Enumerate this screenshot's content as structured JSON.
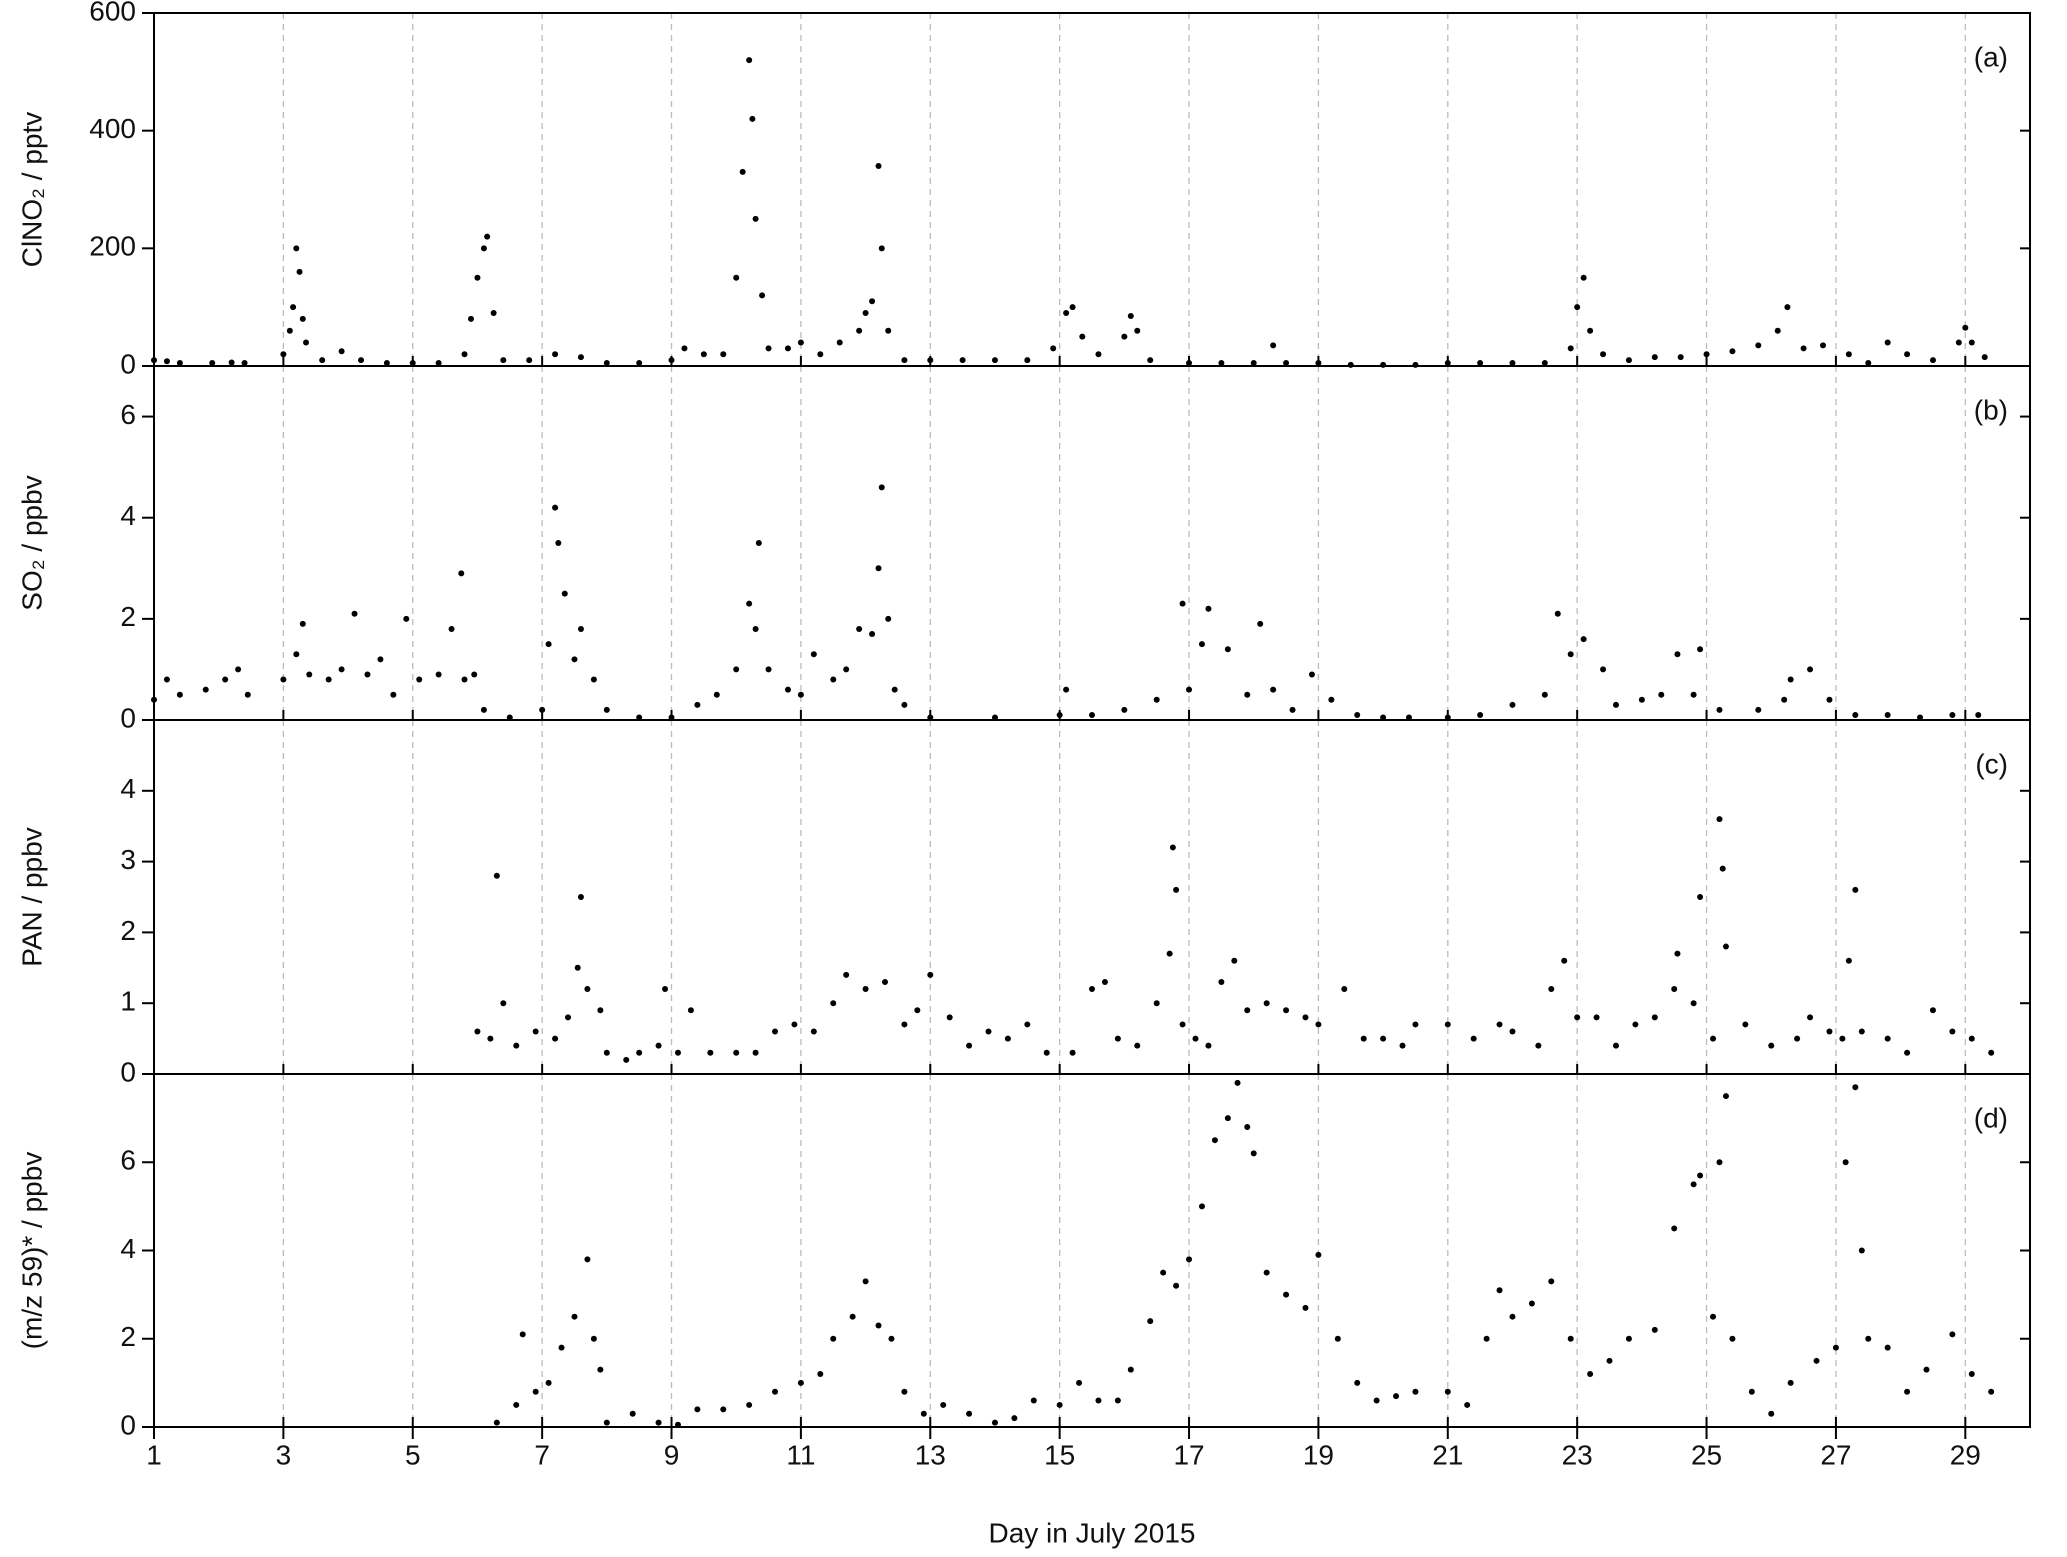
{
  "chart_data": [
    {
      "type": "scatter",
      "ylabel": "ClNO₂ / pptv",
      "annotation": "(a)",
      "color": "#000000",
      "grid": true,
      "xlim": [
        1,
        30
      ],
      "xticks": [
        1,
        3,
        5,
        7,
        9,
        11,
        13,
        15,
        17,
        19,
        21,
        23,
        25,
        27,
        29
      ],
      "ylim": [
        0,
        600
      ],
      "yticks": [
        0,
        200,
        400,
        600
      ],
      "x": [
        1.0,
        1.2,
        1.4,
        1.9,
        2.2,
        2.4,
        3.0,
        3.1,
        3.15,
        3.2,
        3.25,
        3.3,
        3.35,
        3.6,
        3.9,
        4.2,
        4.6,
        5.0,
        5.4,
        5.8,
        5.9,
        6.0,
        6.1,
        6.15,
        6.25,
        6.4,
        6.8,
        7.2,
        7.6,
        8.0,
        8.5,
        9.0,
        9.2,
        9.5,
        9.8,
        10.0,
        10.1,
        10.2,
        10.25,
        10.3,
        10.4,
        10.5,
        10.8,
        11.0,
        11.3,
        11.6,
        11.9,
        12.0,
        12.1,
        12.2,
        12.25,
        12.35,
        12.6,
        13.0,
        13.5,
        14.0,
        14.5,
        14.9,
        15.1,
        15.2,
        15.35,
        15.6,
        16.0,
        16.1,
        16.2,
        16.4,
        17.0,
        17.5,
        18.0,
        18.3,
        18.5,
        19.0,
        19.5,
        20.0,
        20.5,
        21.0,
        21.5,
        22.0,
        22.5,
        22.9,
        23.0,
        23.1,
        23.2,
        23.4,
        23.8,
        24.2,
        24.6,
        25.0,
        25.4,
        25.8,
        26.1,
        26.25,
        26.5,
        26.8,
        27.2,
        27.5,
        27.8,
        28.1,
        28.5,
        28.9,
        29.0,
        29.1,
        29.3
      ],
      "values": [
        10,
        8,
        5,
        5,
        6,
        5,
        20,
        60,
        100,
        200,
        160,
        80,
        40,
        10,
        25,
        10,
        5,
        5,
        5,
        20,
        80,
        150,
        200,
        220,
        90,
        10,
        10,
        20,
        15,
        5,
        5,
        10,
        30,
        20,
        20,
        150,
        330,
        520,
        420,
        250,
        120,
        30,
        30,
        40,
        20,
        40,
        60,
        90,
        110,
        340,
        200,
        60,
        10,
        10,
        10,
        10,
        10,
        30,
        90,
        100,
        50,
        20,
        50,
        85,
        60,
        10,
        5,
        5,
        5,
        35,
        5,
        5,
        2,
        2,
        2,
        5,
        5,
        5,
        5,
        30,
        100,
        150,
        60,
        20,
        10,
        15,
        15,
        20,
        25,
        35,
        60,
        100,
        30,
        35,
        20,
        5,
        40,
        20,
        10,
        40,
        65,
        40,
        15
      ]
    },
    {
      "type": "scatter",
      "ylabel": "SO₂ / ppbv",
      "annotation": "(b)",
      "color": "#000000",
      "grid": true,
      "xlim": [
        1,
        30
      ],
      "xticks": [
        1,
        3,
        5,
        7,
        9,
        11,
        13,
        15,
        17,
        19,
        21,
        23,
        25,
        27,
        29
      ],
      "ylim": [
        0,
        7
      ],
      "yticks": [
        0,
        2,
        4,
        6
      ],
      "x": [
        1.0,
        1.2,
        1.4,
        1.8,
        2.1,
        2.3,
        2.45,
        3.0,
        3.2,
        3.3,
        3.4,
        3.7,
        3.9,
        4.1,
        4.3,
        4.5,
        4.7,
        4.9,
        5.1,
        5.4,
        5.6,
        5.8,
        5.75,
        5.95,
        6.1,
        6.5,
        7.0,
        7.1,
        7.2,
        7.25,
        7.35,
        7.5,
        7.6,
        7.8,
        8.0,
        8.5,
        9.0,
        9.4,
        9.7,
        10.0,
        10.2,
        10.3,
        10.35,
        10.5,
        10.8,
        11.0,
        11.2,
        11.5,
        11.7,
        11.9,
        12.1,
        12.2,
        12.25,
        12.35,
        12.45,
        12.6,
        13.0,
        14.0,
        15.0,
        15.1,
        15.5,
        16.0,
        16.5,
        16.9,
        17.0,
        17.2,
        17.3,
        17.6,
        17.9,
        18.1,
        18.3,
        18.6,
        18.9,
        19.2,
        19.6,
        20.0,
        20.4,
        21.0,
        21.5,
        22.0,
        22.5,
        22.7,
        22.9,
        23.1,
        23.4,
        23.6,
        24.0,
        24.3,
        24.55,
        24.8,
        24.9,
        25.2,
        25.8,
        26.2,
        26.3,
        26.6,
        26.9,
        27.3,
        27.8,
        28.3,
        28.8,
        29.2
      ],
      "values": [
        0.4,
        0.8,
        0.5,
        0.6,
        0.8,
        1.0,
        0.5,
        0.8,
        1.3,
        1.9,
        0.9,
        0.8,
        1.0,
        2.1,
        0.9,
        1.2,
        0.5,
        2.0,
        0.8,
        0.9,
        1.8,
        0.8,
        2.9,
        0.9,
        0.2,
        0.05,
        0.2,
        1.5,
        4.2,
        3.5,
        2.5,
        1.2,
        1.8,
        0.8,
        0.2,
        0.05,
        0.05,
        0.3,
        0.5,
        1.0,
        2.3,
        1.8,
        3.5,
        1.0,
        0.6,
        0.5,
        1.3,
        0.8,
        1.0,
        1.8,
        1.7,
        3.0,
        4.6,
        2.0,
        0.6,
        0.3,
        0.05,
        0.05,
        0.1,
        0.6,
        0.1,
        0.2,
        0.4,
        2.3,
        0.6,
        1.5,
        2.2,
        1.4,
        0.5,
        1.9,
        0.6,
        0.2,
        0.9,
        0.4,
        0.1,
        0.05,
        0.05,
        0.05,
        0.1,
        0.3,
        0.5,
        2.1,
        1.3,
        1.6,
        1.0,
        0.3,
        0.4,
        0.5,
        1.3,
        0.5,
        1.4,
        0.2,
        0.2,
        0.4,
        0.8,
        1.0,
        0.4,
        0.1,
        0.1,
        0.05,
        0.1,
        0.1
      ]
    },
    {
      "type": "scatter",
      "ylabel": "PAN / ppbv",
      "annotation": "(c)",
      "color": "#000000",
      "grid": true,
      "xlim": [
        1,
        30
      ],
      "xticks": [
        1,
        3,
        5,
        7,
        9,
        11,
        13,
        15,
        17,
        19,
        21,
        23,
        25,
        27,
        29
      ],
      "ylim": [
        0,
        5
      ],
      "yticks": [
        0,
        1,
        2,
        3,
        4
      ],
      "x": [
        6.0,
        6.2,
        6.3,
        6.4,
        6.6,
        6.9,
        7.2,
        7.4,
        7.55,
        7.6,
        7.7,
        7.9,
        8.0,
        8.3,
        8.5,
        8.8,
        8.9,
        9.1,
        9.3,
        9.6,
        10.0,
        10.3,
        10.6,
        10.9,
        11.2,
        11.5,
        11.7,
        12.0,
        12.3,
        12.6,
        12.8,
        13.0,
        13.3,
        13.6,
        13.9,
        14.2,
        14.5,
        14.8,
        15.2,
        15.5,
        15.7,
        15.9,
        16.2,
        16.5,
        16.7,
        16.75,
        16.8,
        16.9,
        17.1,
        17.3,
        17.5,
        17.7,
        17.9,
        18.2,
        18.5,
        18.8,
        19.0,
        19.4,
        19.7,
        20.0,
        20.3,
        20.5,
        21.0,
        21.4,
        21.8,
        22.0,
        22.4,
        22.6,
        22.8,
        23.0,
        23.3,
        23.6,
        23.9,
        24.2,
        24.5,
        24.55,
        24.8,
        24.9,
        25.1,
        25.2,
        25.25,
        25.3,
        25.6,
        26.0,
        26.4,
        26.6,
        26.9,
        27.1,
        27.2,
        27.3,
        27.4,
        27.8,
        28.1,
        28.5,
        28.8,
        29.1,
        29.4
      ],
      "values": [
        0.6,
        0.5,
        2.8,
        1.0,
        0.4,
        0.6,
        0.5,
        0.8,
        1.5,
        2.5,
        1.2,
        0.9,
        0.3,
        0.2,
        0.3,
        0.4,
        1.2,
        0.3,
        0.9,
        0.3,
        0.3,
        0.3,
        0.6,
        0.7,
        0.6,
        1.0,
        1.4,
        1.2,
        1.3,
        0.7,
        0.9,
        1.4,
        0.8,
        0.4,
        0.6,
        0.5,
        0.7,
        0.3,
        0.3,
        1.2,
        1.3,
        0.5,
        0.4,
        1.0,
        1.7,
        3.2,
        2.6,
        0.7,
        0.5,
        0.4,
        1.3,
        1.6,
        0.9,
        1.0,
        0.9,
        0.8,
        0.7,
        1.2,
        0.5,
        0.5,
        0.4,
        0.7,
        0.7,
        0.5,
        0.7,
        0.6,
        0.4,
        1.2,
        1.6,
        0.8,
        0.8,
        0.4,
        0.7,
        0.8,
        1.2,
        1.7,
        1.0,
        2.5,
        0.5,
        3.6,
        2.9,
        1.8,
        0.7,
        0.4,
        0.5,
        0.8,
        0.6,
        0.5,
        1.6,
        2.6,
        0.6,
        0.5,
        0.3,
        0.9,
        0.6,
        0.5,
        0.3
      ]
    },
    {
      "type": "scatter",
      "ylabel": "(m/z 59)* / ppbv",
      "annotation": "(d)",
      "xlabel": "Day in July 2015",
      "color": "#000000",
      "grid": true,
      "xlim": [
        1,
        30
      ],
      "xticks": [
        1,
        3,
        5,
        7,
        9,
        11,
        13,
        15,
        17,
        19,
        21,
        23,
        25,
        27,
        29
      ],
      "ylim": [
        0,
        8
      ],
      "yticks": [
        0,
        2,
        4,
        6
      ],
      "x": [
        6.3,
        6.6,
        6.7,
        6.9,
        7.1,
        7.3,
        7.5,
        7.7,
        7.8,
        7.9,
        8.0,
        8.4,
        8.8,
        9.1,
        9.4,
        9.8,
        10.2,
        10.6,
        11.0,
        11.3,
        11.5,
        11.8,
        12.0,
        12.2,
        12.4,
        12.6,
        12.9,
        13.2,
        13.6,
        14.0,
        14.3,
        14.6,
        15.0,
        15.3,
        15.6,
        15.9,
        16.1,
        16.4,
        16.6,
        16.8,
        17.0,
        17.2,
        17.4,
        17.6,
        17.75,
        17.9,
        18.0,
        18.2,
        18.5,
        18.8,
        19.0,
        19.3,
        19.6,
        19.9,
        20.2,
        20.5,
        21.0,
        21.3,
        21.6,
        21.8,
        22.0,
        22.3,
        22.6,
        22.9,
        23.2,
        23.5,
        23.8,
        24.2,
        24.5,
        24.8,
        24.9,
        25.1,
        25.2,
        25.3,
        25.4,
        25.7,
        26.0,
        26.3,
        26.7,
        27.0,
        27.15,
        27.3,
        27.4,
        27.5,
        27.8,
        28.1,
        28.4,
        28.8,
        29.1,
        29.4
      ],
      "values": [
        0.1,
        0.5,
        2.1,
        0.8,
        1.0,
        1.8,
        2.5,
        3.8,
        2.0,
        1.3,
        0.1,
        0.3,
        0.1,
        0.05,
        0.4,
        0.4,
        0.5,
        0.8,
        1.0,
        1.2,
        2.0,
        2.5,
        3.3,
        2.3,
        2.0,
        0.8,
        0.3,
        0.5,
        0.3,
        0.1,
        0.2,
        0.6,
        0.5,
        1.0,
        0.6,
        0.6,
        1.3,
        2.4,
        3.5,
        3.2,
        3.8,
        5.0,
        6.5,
        7.0,
        7.8,
        6.8,
        6.2,
        3.5,
        3.0,
        2.7,
        3.9,
        2.0,
        1.0,
        0.6,
        0.7,
        0.8,
        0.8,
        0.5,
        2.0,
        3.1,
        2.5,
        2.8,
        3.3,
        2.0,
        1.2,
        1.5,
        2.0,
        2.2,
        4.5,
        5.5,
        5.7,
        2.5,
        6.0,
        7.5,
        2.0,
        0.8,
        0.3,
        1.0,
        1.5,
        1.8,
        6.0,
        7.7,
        4.0,
        2.0,
        1.8,
        0.8,
        1.3,
        2.1,
        1.2,
        0.8
      ]
    }
  ]
}
